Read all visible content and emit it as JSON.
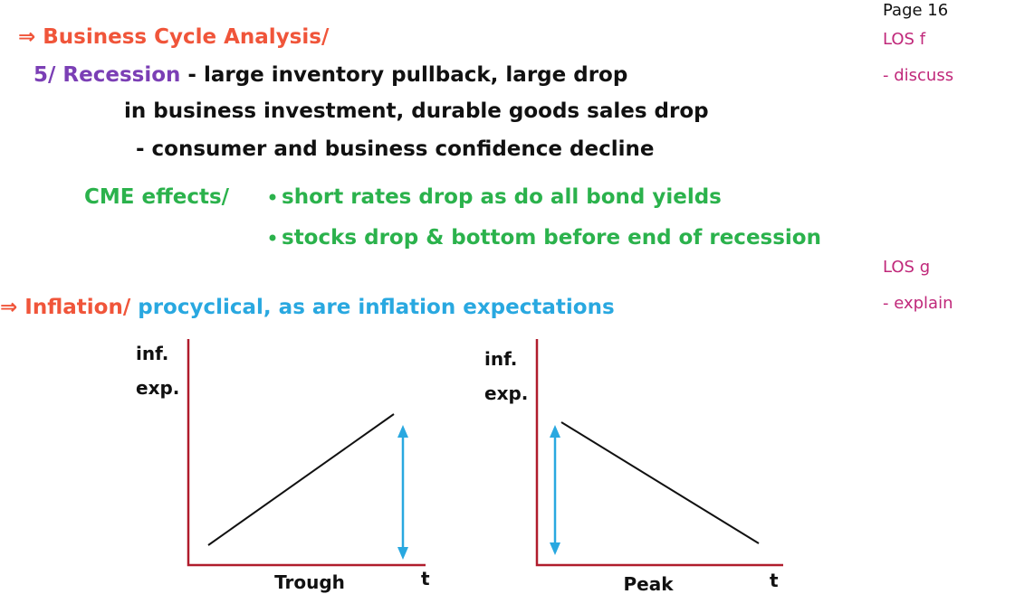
{
  "heading": "⇒ Business Cycle Analysis/",
  "recession": {
    "label": "5/ Recession",
    "lines": [
      "- large inventory pullback, large drop",
      "in business investment, durable goods sales drop",
      "- consumer and business confidence decline"
    ]
  },
  "cme": {
    "label": "CME effects/",
    "bullets": [
      "short rates drop as do all bond yields",
      "stocks drop & bottom before end of recession"
    ]
  },
  "inflation": {
    "heading": "⇒ Inflation/",
    "text": "procyclical, as are inflation expectations"
  },
  "charts": [
    {
      "y_label": [
        "inf.",
        "exp."
      ],
      "x_label": "Trough",
      "x_axis": "t"
    },
    {
      "y_label": [
        "inf.",
        "exp."
      ],
      "x_label": "Peak",
      "x_axis": "t"
    }
  ],
  "side_notes": [
    "Page 16",
    "LOS f",
    "- discuss",
    "LOS g",
    "- explain"
  ]
}
